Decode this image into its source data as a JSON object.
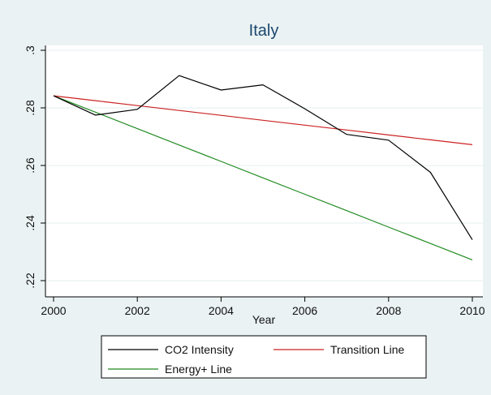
{
  "chart_data": {
    "type": "line",
    "title": "Italy",
    "xlabel": "Year",
    "ylabel": "",
    "xlim": [
      2000,
      2010
    ],
    "ylim": [
      0.22,
      0.3
    ],
    "x_ticks": [
      2000,
      2002,
      2004,
      2006,
      2008,
      2010
    ],
    "x_tick_labels": [
      "2000",
      "2002",
      "2004",
      "2006",
      "2008",
      "2010"
    ],
    "y_ticks": [
      0.22,
      0.24,
      0.26,
      0.28,
      0.3
    ],
    "y_tick_labels": [
      ".22",
      ".24",
      ".26",
      ".28",
      ".3"
    ],
    "grid": true,
    "legend_position": "bottom",
    "x": [
      2000,
      2001,
      2002,
      2003,
      2004,
      2005,
      2006,
      2007,
      2008,
      2009,
      2010
    ],
    "series": [
      {
        "name": "CO2 Intensity",
        "color": "#000000",
        "values": [
          0.2842,
          0.2775,
          0.2795,
          0.2912,
          0.2862,
          0.288,
          0.2797,
          0.2708,
          0.2688,
          0.2576,
          0.2342
        ]
      },
      {
        "name": "Transition Line",
        "color": "#cc2222",
        "values": [
          0.2842,
          0.2825,
          0.2808,
          0.2791,
          0.2774,
          0.2757,
          0.274,
          0.2723,
          0.2706,
          0.2689,
          0.2672
        ]
      },
      {
        "name": "Energy+ Line",
        "color": "#228b22",
        "values": [
          0.2842,
          0.2785,
          0.2728,
          0.2671,
          0.2614,
          0.2557,
          0.25,
          0.2443,
          0.2386,
          0.2329,
          0.2272
        ]
      }
    ]
  }
}
